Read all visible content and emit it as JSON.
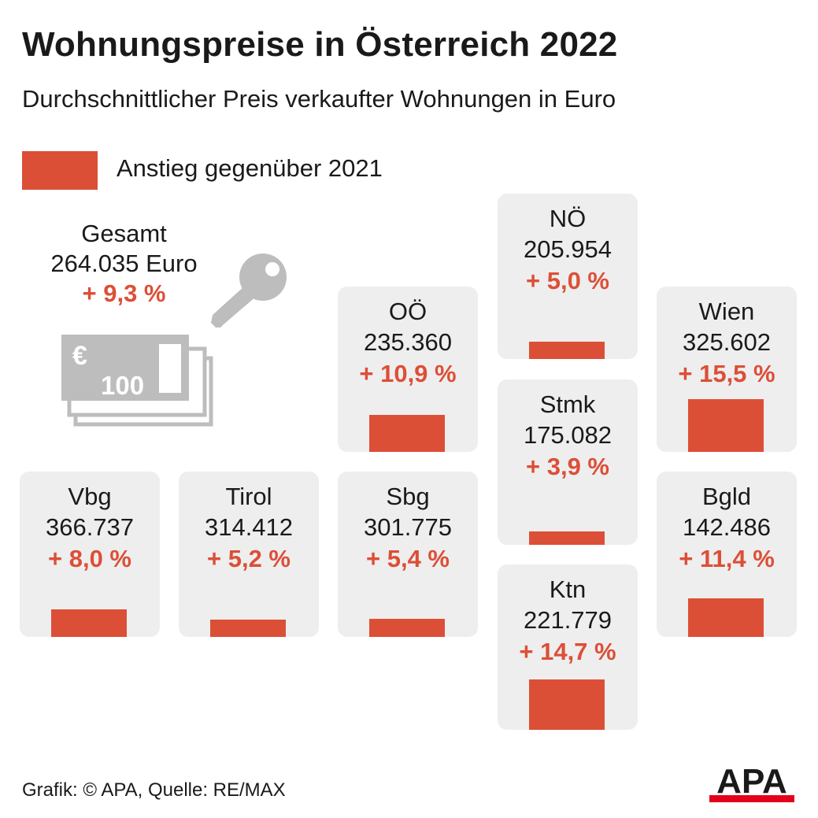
{
  "title": "Wohnungspreise in Österreich 2022",
  "subtitle": "Durchschnittlicher Preis verkaufter Wohnungen in Euro",
  "legend": {
    "label": "Anstieg gegenüber 2021",
    "color": "#dc4f37"
  },
  "total": {
    "name": "Gesamt",
    "value": "264.035 Euro",
    "change": "+ 9,3 %"
  },
  "icons": {
    "key": "key-icon",
    "money": "banknote-icon",
    "money_label": "100",
    "money_symbol": "€"
  },
  "colors": {
    "accent": "#dc4f37",
    "tile": "#eeeeee",
    "icon": "#bdbdbd"
  },
  "chart_data": {
    "type": "bar",
    "categories": [
      "Vbg",
      "Tirol",
      "Sbg",
      "OÖ",
      "NÖ",
      "Stmk",
      "Ktn",
      "Wien",
      "Bgld"
    ],
    "prices": [
      "366.737",
      "314.412",
      "301.775",
      "235.360",
      "205.954",
      "175.082",
      "221.779",
      "325.602",
      "142.486"
    ],
    "change_labels": [
      "+ 8,0 %",
      "+ 5,2 %",
      "+ 5,4 %",
      "+ 10,9 %",
      "+ 5,0 %",
      "+ 3,9 %",
      "+ 14,7 %",
      "+ 15,5 %",
      "+ 11,4 %"
    ],
    "values": [
      8.0,
      5.2,
      5.4,
      10.9,
      5.0,
      3.9,
      14.7,
      15.5,
      11.4
    ],
    "unit": "%"
  },
  "source": "Grafik: © APA, Quelle: RE/MAX",
  "logo": "APA"
}
